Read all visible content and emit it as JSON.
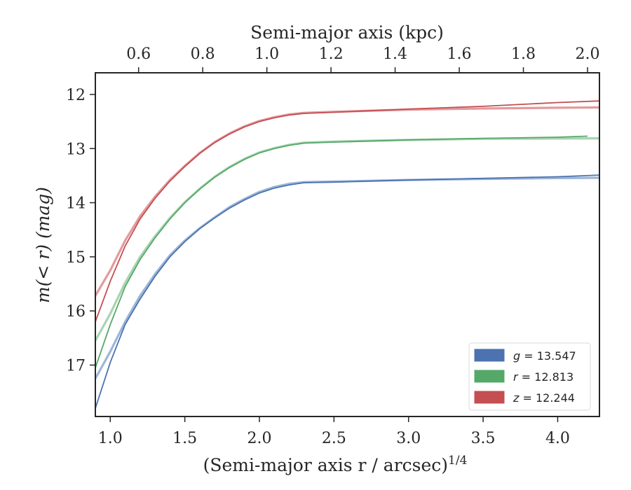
{
  "chart_data": {
    "type": "line",
    "xlabel": "(Semi-major axis r / arcsec)",
    "xlabel_superscript": "1/4",
    "ylabel": "m(< r) (mag)",
    "top_xlabel": "Semi-major axis (kpc)",
    "xlim": [
      0.9,
      4.28
    ],
    "ylim": [
      17.95,
      11.6
    ],
    "y_inverted": true,
    "x_ticks": [
      "1.0",
      "1.5",
      "2.0",
      "2.5",
      "3.0",
      "3.5",
      "4.0"
    ],
    "x_tick_values": [
      1.0,
      1.5,
      2.0,
      2.5,
      3.0,
      3.5,
      4.0
    ],
    "y_ticks": [
      "12",
      "13",
      "14",
      "15",
      "16",
      "17"
    ],
    "y_tick_values": [
      12,
      13,
      14,
      15,
      16,
      17
    ],
    "top_x_ticks": [
      "0.6",
      "0.8",
      "1.0",
      "1.2",
      "1.4",
      "1.6",
      "1.8",
      "2.0"
    ],
    "top_x_tick_positions": [
      1.19,
      1.62,
      2.05,
      2.48,
      2.91,
      3.34,
      3.77,
      4.2
    ],
    "grid": false,
    "legend_position": "bottom-right",
    "series": [
      {
        "name": "g = 13.547",
        "legend_var": "g",
        "legend_value": "13.547",
        "color": "#4c72b0",
        "light_color": "#9cb6d8",
        "model": [
          [
            0.9,
            17.25
          ],
          [
            1.0,
            16.75
          ],
          [
            1.1,
            16.2
          ],
          [
            1.2,
            15.72
          ],
          [
            1.3,
            15.32
          ],
          [
            1.4,
            14.97
          ],
          [
            1.5,
            14.7
          ],
          [
            1.6,
            14.47
          ],
          [
            1.7,
            14.27
          ],
          [
            1.8,
            14.08
          ],
          [
            1.9,
            13.93
          ],
          [
            2.0,
            13.8
          ],
          [
            2.1,
            13.71
          ],
          [
            2.2,
            13.65
          ],
          [
            2.3,
            13.62
          ],
          [
            2.5,
            13.61
          ],
          [
            3.0,
            13.58
          ],
          [
            3.5,
            13.56
          ],
          [
            4.0,
            13.545
          ],
          [
            4.28,
            13.54
          ]
        ],
        "data": [
          [
            0.9,
            17.8
          ],
          [
            1.0,
            16.95
          ],
          [
            1.1,
            16.25
          ],
          [
            1.2,
            15.78
          ],
          [
            1.3,
            15.36
          ],
          [
            1.4,
            15.0
          ],
          [
            1.5,
            14.72
          ],
          [
            1.6,
            14.48
          ],
          [
            1.7,
            14.28
          ],
          [
            1.8,
            14.1
          ],
          [
            1.9,
            13.95
          ],
          [
            2.0,
            13.82
          ],
          [
            2.1,
            13.73
          ],
          [
            2.2,
            13.67
          ],
          [
            2.3,
            13.63
          ],
          [
            2.5,
            13.62
          ],
          [
            3.0,
            13.58
          ],
          [
            3.5,
            13.55
          ],
          [
            4.0,
            13.52
          ],
          [
            4.28,
            13.49
          ]
        ]
      },
      {
        "name": "r = 12.813",
        "legend_var": "r",
        "legend_value": "12.813",
        "color": "#55a868",
        "light_color": "#a8d4b0",
        "model": [
          [
            0.9,
            16.55
          ],
          [
            1.0,
            16.05
          ],
          [
            1.1,
            15.48
          ],
          [
            1.2,
            15.0
          ],
          [
            1.3,
            14.62
          ],
          [
            1.4,
            14.28
          ],
          [
            1.5,
            13.99
          ],
          [
            1.6,
            13.74
          ],
          [
            1.7,
            13.52
          ],
          [
            1.8,
            13.34
          ],
          [
            1.9,
            13.19
          ],
          [
            2.0,
            13.07
          ],
          [
            2.1,
            12.99
          ],
          [
            2.2,
            12.93
          ],
          [
            2.3,
            12.89
          ],
          [
            2.5,
            12.87
          ],
          [
            3.0,
            12.84
          ],
          [
            3.5,
            12.82
          ],
          [
            4.0,
            12.815
          ],
          [
            4.28,
            12.81
          ]
        ],
        "data": [
          [
            0.9,
            17.05
          ],
          [
            1.0,
            16.25
          ],
          [
            1.1,
            15.55
          ],
          [
            1.2,
            15.05
          ],
          [
            1.3,
            14.65
          ],
          [
            1.4,
            14.3
          ],
          [
            1.5,
            14.0
          ],
          [
            1.6,
            13.75
          ],
          [
            1.7,
            13.53
          ],
          [
            1.8,
            13.35
          ],
          [
            1.9,
            13.2
          ],
          [
            2.0,
            13.08
          ],
          [
            2.1,
            13.0
          ],
          [
            2.2,
            12.94
          ],
          [
            2.3,
            12.9
          ],
          [
            2.5,
            12.88
          ],
          [
            3.0,
            12.84
          ],
          [
            3.5,
            12.81
          ],
          [
            4.0,
            12.79
          ],
          [
            4.2,
            12.77
          ]
        ]
      },
      {
        "name": "z = 12.244",
        "legend_var": "z",
        "legend_value": "12.244",
        "color": "#c44e52",
        "light_color": "#e39a9c",
        "model": [
          [
            0.9,
            15.72
          ],
          [
            1.0,
            15.25
          ],
          [
            1.1,
            14.7
          ],
          [
            1.2,
            14.25
          ],
          [
            1.3,
            13.89
          ],
          [
            1.4,
            13.58
          ],
          [
            1.5,
            13.32
          ],
          [
            1.6,
            13.08
          ],
          [
            1.7,
            12.88
          ],
          [
            1.8,
            12.72
          ],
          [
            1.9,
            12.59
          ],
          [
            2.0,
            12.49
          ],
          [
            2.1,
            12.42
          ],
          [
            2.2,
            12.37
          ],
          [
            2.3,
            12.34
          ],
          [
            2.5,
            12.32
          ],
          [
            3.0,
            12.28
          ],
          [
            3.5,
            12.26
          ],
          [
            4.0,
            12.245
          ],
          [
            4.28,
            12.24
          ]
        ],
        "data": [
          [
            0.9,
            16.2
          ],
          [
            1.0,
            15.45
          ],
          [
            1.1,
            14.8
          ],
          [
            1.2,
            14.3
          ],
          [
            1.3,
            13.92
          ],
          [
            1.4,
            13.6
          ],
          [
            1.5,
            13.33
          ],
          [
            1.6,
            13.09
          ],
          [
            1.7,
            12.89
          ],
          [
            1.8,
            12.73
          ],
          [
            1.9,
            12.6
          ],
          [
            2.0,
            12.5
          ],
          [
            2.1,
            12.43
          ],
          [
            2.2,
            12.38
          ],
          [
            2.3,
            12.35
          ],
          [
            2.5,
            12.33
          ],
          [
            3.0,
            12.27
          ],
          [
            3.5,
            12.22
          ],
          [
            4.0,
            12.15
          ],
          [
            4.28,
            12.12
          ]
        ]
      }
    ]
  }
}
